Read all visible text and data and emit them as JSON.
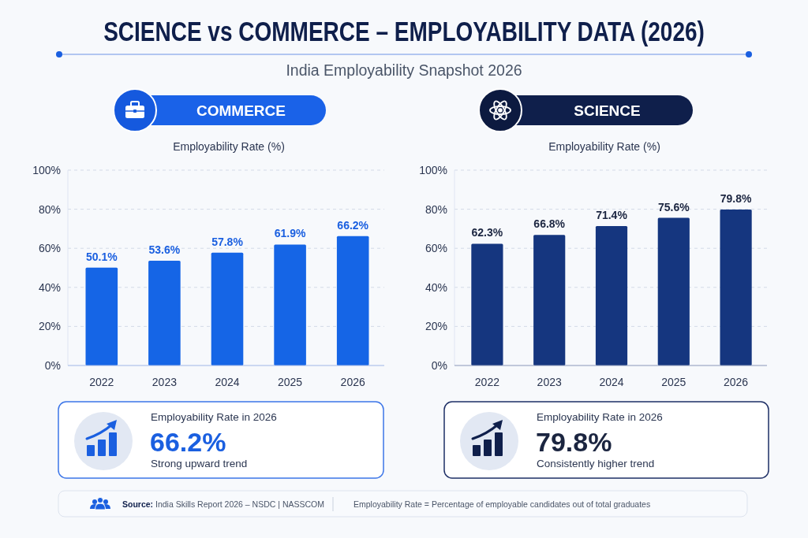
{
  "chart_data": [
    {
      "type": "other",
      "title": "SCIENCE vs COMMERCE – EMPLOYABILITY DATA (2026)",
      "subtitle": "India Employability Snapshot 2026",
      "annotations": [
        "Source: India Skills Report 2026 – NSDC | NASSCOM",
        "Employability Rate = Percentage of employable candidates out of total graduates"
      ]
    },
    {
      "type": "bar",
      "title": "COMMERCE",
      "subtitle": "Employability Rate (%)",
      "categories": [
        "2022",
        "2023",
        "2024",
        "2025",
        "2026"
      ],
      "values": [
        50.1,
        53.6,
        57.8,
        61.9,
        66.2
      ],
      "value_labels": [
        "50.1%",
        "53.6%",
        "57.8%",
        "61.9%",
        "66.2%"
      ],
      "color": "#1565e6",
      "ylim": [
        0,
        100
      ],
      "yticks": [
        {
          "value": 0,
          "label": "0%"
        },
        {
          "value": 20,
          "label": "20%"
        },
        {
          "value": 40,
          "label": "40%"
        },
        {
          "value": 60,
          "label": "60%"
        },
        {
          "value": 80,
          "label": "80%"
        },
        {
          "value": 100,
          "label": "100%"
        }
      ],
      "grid": "y",
      "annotations": [
        "Employability Rate in 2026",
        "66.2%",
        "Strong upward trend"
      ]
    },
    {
      "type": "bar",
      "title": "SCIENCE",
      "subtitle": "Employability Rate (%)",
      "categories": [
        "2022",
        "2023",
        "2024",
        "2025",
        "2026"
      ],
      "values": [
        62.3,
        66.8,
        71.4,
        75.6,
        79.8
      ],
      "value_labels": [
        "62.3%",
        "66.8%",
        "71.4%",
        "75.6%",
        "79.8%"
      ],
      "color": "#15367f",
      "ylim": [
        0,
        100
      ],
      "yticks": [
        {
          "value": 0,
          "label": "0%"
        },
        {
          "value": 20,
          "label": "20%"
        },
        {
          "value": 40,
          "label": "40%"
        },
        {
          "value": 60,
          "label": "60%"
        },
        {
          "value": 80,
          "label": "80%"
        },
        {
          "value": 100,
          "label": "100%"
        }
      ],
      "grid": "y",
      "annotations": [
        "Employability Rate in 2026",
        "79.8%",
        "Consistently higher trend"
      ]
    }
  ]
}
